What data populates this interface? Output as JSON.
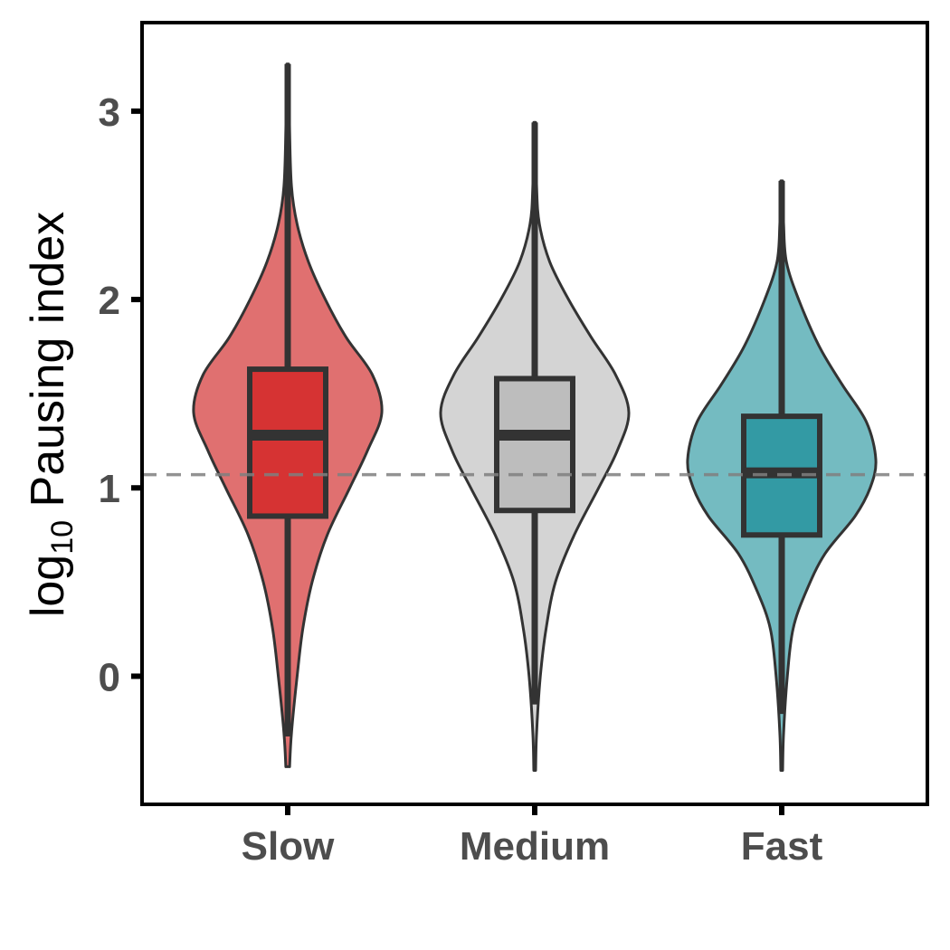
{
  "chart_data": {
    "type": "violin",
    "ylabel": "log10 Pausing index",
    "ylabel_base": "log",
    "ylabel_sub": "10",
    "ylabel_rest": " Pausing index",
    "ylim": [
      -0.68,
      3.47
    ],
    "y_ticks": [
      {
        "value": 0,
        "label": "0"
      },
      {
        "value": 1,
        "label": "1"
      },
      {
        "value": 2,
        "label": "2"
      },
      {
        "value": 3,
        "label": "3"
      }
    ],
    "categories": [
      "Slow",
      "Medium",
      "Fast"
    ],
    "reference_line": {
      "value": 1.07,
      "style": "dashed",
      "color": "#808080"
    },
    "grid": false,
    "legend": "none",
    "series": [
      {
        "category": "Slow",
        "violin_color": "#e07070",
        "box_color": "#d63333",
        "box": {
          "lower_whisker": -0.32,
          "q1": 0.85,
          "median": 1.28,
          "q3": 1.63,
          "upper_whisker": 3.25
        },
        "density": [
          {
            "y": -0.48,
            "w": 0.02
          },
          {
            "y": -0.3,
            "w": 0.04
          },
          {
            "y": 0.0,
            "w": 0.1
          },
          {
            "y": 0.25,
            "w": 0.16
          },
          {
            "y": 0.5,
            "w": 0.26
          },
          {
            "y": 0.75,
            "w": 0.42
          },
          {
            "y": 1.0,
            "w": 0.66
          },
          {
            "y": 1.2,
            "w": 0.85
          },
          {
            "y": 1.4,
            "w": 1.0
          },
          {
            "y": 1.6,
            "w": 0.9
          },
          {
            "y": 1.8,
            "w": 0.62
          },
          {
            "y": 2.0,
            "w": 0.4
          },
          {
            "y": 2.2,
            "w": 0.22
          },
          {
            "y": 2.4,
            "w": 0.1
          },
          {
            "y": 2.6,
            "w": 0.04
          },
          {
            "y": 2.9,
            "w": 0.02
          },
          {
            "y": 3.25,
            "w": 0.01
          }
        ]
      },
      {
        "category": "Medium",
        "violin_color": "#d4d4d4",
        "box_color": "#bdbdbd",
        "box": {
          "lower_whisker": -0.15,
          "q1": 0.88,
          "median": 1.28,
          "q3": 1.58,
          "upper_whisker": 2.94
        },
        "density": [
          {
            "y": -0.5,
            "w": 0.01
          },
          {
            "y": -0.3,
            "w": 0.02
          },
          {
            "y": 0.0,
            "w": 0.06
          },
          {
            "y": 0.25,
            "w": 0.12
          },
          {
            "y": 0.5,
            "w": 0.22
          },
          {
            "y": 0.75,
            "w": 0.42
          },
          {
            "y": 1.0,
            "w": 0.68
          },
          {
            "y": 1.2,
            "w": 0.88
          },
          {
            "y": 1.4,
            "w": 1.0
          },
          {
            "y": 1.6,
            "w": 0.86
          },
          {
            "y": 1.8,
            "w": 0.6
          },
          {
            "y": 2.0,
            "w": 0.36
          },
          {
            "y": 2.2,
            "w": 0.16
          },
          {
            "y": 2.4,
            "w": 0.05
          },
          {
            "y": 2.6,
            "w": 0.02
          },
          {
            "y": 2.94,
            "w": 0.01
          }
        ]
      },
      {
        "category": "Fast",
        "violin_color": "#74bbc1",
        "box_color": "#339aa4",
        "box": {
          "lower_whisker": -0.2,
          "q1": 0.75,
          "median": 1.08,
          "q3": 1.38,
          "upper_whisker": 2.63
        },
        "density": [
          {
            "y": -0.5,
            "w": 0.01
          },
          {
            "y": -0.3,
            "w": 0.02
          },
          {
            "y": 0.0,
            "w": 0.06
          },
          {
            "y": 0.25,
            "w": 0.12
          },
          {
            "y": 0.45,
            "w": 0.26
          },
          {
            "y": 0.65,
            "w": 0.46
          },
          {
            "y": 0.85,
            "w": 0.78
          },
          {
            "y": 1.0,
            "w": 0.94
          },
          {
            "y": 1.15,
            "w": 1.0
          },
          {
            "y": 1.35,
            "w": 0.9
          },
          {
            "y": 1.55,
            "w": 0.64
          },
          {
            "y": 1.75,
            "w": 0.4
          },
          {
            "y": 2.0,
            "w": 0.18
          },
          {
            "y": 2.2,
            "w": 0.05
          },
          {
            "y": 2.4,
            "w": 0.02
          },
          {
            "y": 2.63,
            "w": 0.01
          }
        ]
      }
    ]
  }
}
